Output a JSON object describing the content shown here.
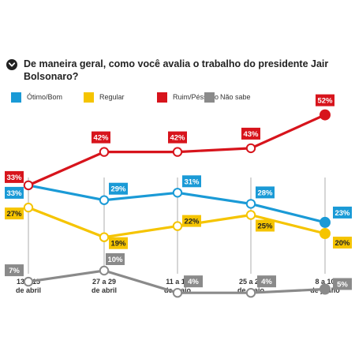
{
  "question": "De maneira geral, como você avalia o trabalho do presidente Jair Bolsonaro?",
  "colors": {
    "otimo_bom": "#1a9ad6",
    "regular": "#f5c400",
    "ruim_pessimo": "#d7141c",
    "nao_sabe": "#8a8a8a"
  },
  "chart_data": {
    "type": "line",
    "title": "",
    "xlabel": "",
    "ylabel": "",
    "ylim": [
      0,
      60
    ],
    "grid": false,
    "legend_position": "top",
    "categories": [
      [
        "13 a 15",
        "de abril"
      ],
      [
        "27 a 29",
        "de abril"
      ],
      [
        "11 a 13",
        "de maio"
      ],
      [
        "25 a 27",
        "de maio"
      ],
      [
        "8 a 10",
        "de junho"
      ]
    ],
    "series": [
      {
        "key": "ruim_pessimo",
        "name": "Ruim/Péssimo",
        "color": "#d7141c",
        "values": [
          33,
          42,
          42,
          43,
          52
        ],
        "labels": [
          "33%",
          "42%",
          "42%",
          "43%",
          "52%"
        ]
      },
      {
        "key": "otimo_bom",
        "name": "Ótimo/Bom",
        "color": "#1a9ad6",
        "values": [
          33,
          29,
          31,
          28,
          23
        ],
        "labels": [
          "33%",
          "29%",
          "31%",
          "28%",
          "23%"
        ]
      },
      {
        "key": "regular",
        "name": "Regular",
        "color": "#f5c400",
        "values": [
          27,
          19,
          22,
          25,
          20
        ],
        "labels": [
          "27%",
          "19%",
          "22%",
          "25%",
          "20%"
        ]
      },
      {
        "key": "nao_sabe",
        "name": "Não sabe",
        "color": "#8a8a8a",
        "values": [
          7,
          10,
          4,
          4,
          5
        ],
        "labels": [
          "7%",
          "10%",
          "4%",
          "4%",
          "5%"
        ]
      }
    ]
  }
}
